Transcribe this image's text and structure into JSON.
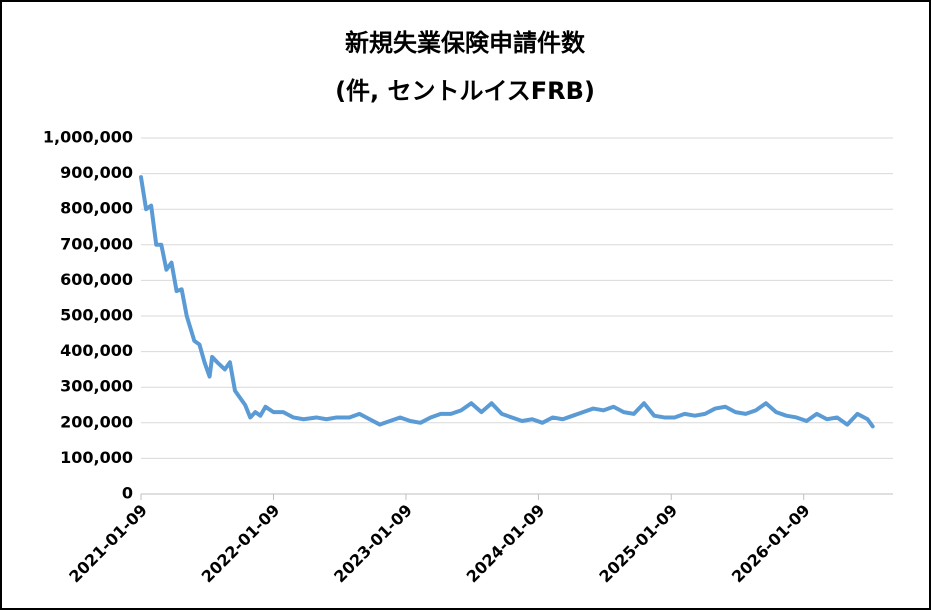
{
  "chart_data": {
    "type": "line",
    "title": "新規失業保険申請件数",
    "subtitle": "(件, セントルイスFRB)",
    "x": [
      "2021-01-09",
      "2021-01-23",
      "2021-02-06",
      "2021-02-20",
      "2021-03-06",
      "2021-03-20",
      "2021-04-03",
      "2021-04-17",
      "2021-05-01",
      "2021-05-15",
      "2021-06-05",
      "2021-06-19",
      "2021-07-03",
      "2021-07-17",
      "2021-07-24",
      "2021-08-07",
      "2021-08-28",
      "2021-09-11",
      "2021-09-25",
      "2021-10-09",
      "2021-10-23",
      "2021-11-06",
      "2021-11-20",
      "2021-12-04",
      "2021-12-18",
      "2022-01-09",
      "2022-02-05",
      "2022-03-05",
      "2022-04-02",
      "2022-05-07",
      "2022-06-04",
      "2022-07-02",
      "2022-08-06",
      "2022-09-03",
      "2022-10-01",
      "2022-10-29",
      "2022-11-26",
      "2022-12-24",
      "2023-01-21",
      "2023-02-18",
      "2023-03-18",
      "2023-04-15",
      "2023-05-13",
      "2023-06-10",
      "2023-07-08",
      "2023-08-05",
      "2023-09-02",
      "2023-09-30",
      "2023-10-28",
      "2023-11-25",
      "2023-12-23",
      "2024-01-20",
      "2024-02-17",
      "2024-03-16",
      "2024-04-13",
      "2024-05-11",
      "2024-06-08",
      "2024-07-06",
      "2024-08-03",
      "2024-08-31",
      "2024-09-28",
      "2024-10-26",
      "2024-11-23",
      "2024-12-21",
      "2025-01-18",
      "2025-02-15",
      "2025-03-15",
      "2025-04-12",
      "2025-05-10",
      "2025-06-07",
      "2025-07-05",
      "2025-08-02",
      "2025-08-30",
      "2025-09-27",
      "2025-10-25",
      "2025-11-22",
      "2025-12-20",
      "2026-01-17",
      "2026-02-14",
      "2026-03-14",
      "2026-04-11",
      "2026-05-09",
      "2026-06-06",
      "2026-07-04",
      "2026-07-18"
    ],
    "series": [
      {
        "color": "#5b9bd5",
        "values": [
          890000,
          800000,
          810000,
          700000,
          700000,
          630000,
          650000,
          570000,
          575000,
          500000,
          430000,
          420000,
          370000,
          330000,
          385000,
          370000,
          350000,
          370000,
          290000,
          270000,
          250000,
          215000,
          230000,
          220000,
          245000,
          230000,
          230000,
          215000,
          210000,
          215000,
          210000,
          215000,
          215000,
          225000,
          210000,
          195000,
          205000,
          215000,
          205000,
          200000,
          215000,
          225000,
          225000,
          235000,
          255000,
          230000,
          255000,
          225000,
          215000,
          205000,
          210000,
          200000,
          215000,
          210000,
          220000,
          230000,
          240000,
          235000,
          245000,
          230000,
          225000,
          255000,
          220000,
          215000,
          215000,
          225000,
          220000,
          225000,
          240000,
          245000,
          230000,
          225000,
          235000,
          255000,
          230000,
          220000,
          215000,
          205000,
          225000,
          210000,
          215000,
          195000,
          225000,
          210000,
          190000
        ]
      }
    ],
    "xlim": [
      "2021-01-09",
      "2026-09-12"
    ],
    "xticks": [
      "2021-01-09",
      "2022-01-09",
      "2023-01-09",
      "2024-01-09",
      "2025-01-09",
      "2026-01-09"
    ],
    "ylim": [
      0,
      1000000
    ],
    "yticks": [
      0,
      {
        "value": 100000,
        "label": "100,000"
      },
      {
        "value": 200000,
        "label": "200,000"
      },
      {
        "value": 300000,
        "label": "300,000"
      },
      {
        "value": 400000,
        "label": "400,000"
      },
      {
        "value": 500000,
        "label": "500,000"
      },
      {
        "value": 600000,
        "label": "600,000"
      },
      {
        "value": 700000,
        "label": "700,000"
      },
      {
        "value": 800000,
        "label": "800,000"
      },
      {
        "value": 900000,
        "label": "900,000"
      },
      {
        "value": 1000000,
        "label": "1,000,000"
      }
    ],
    "grid": true
  }
}
